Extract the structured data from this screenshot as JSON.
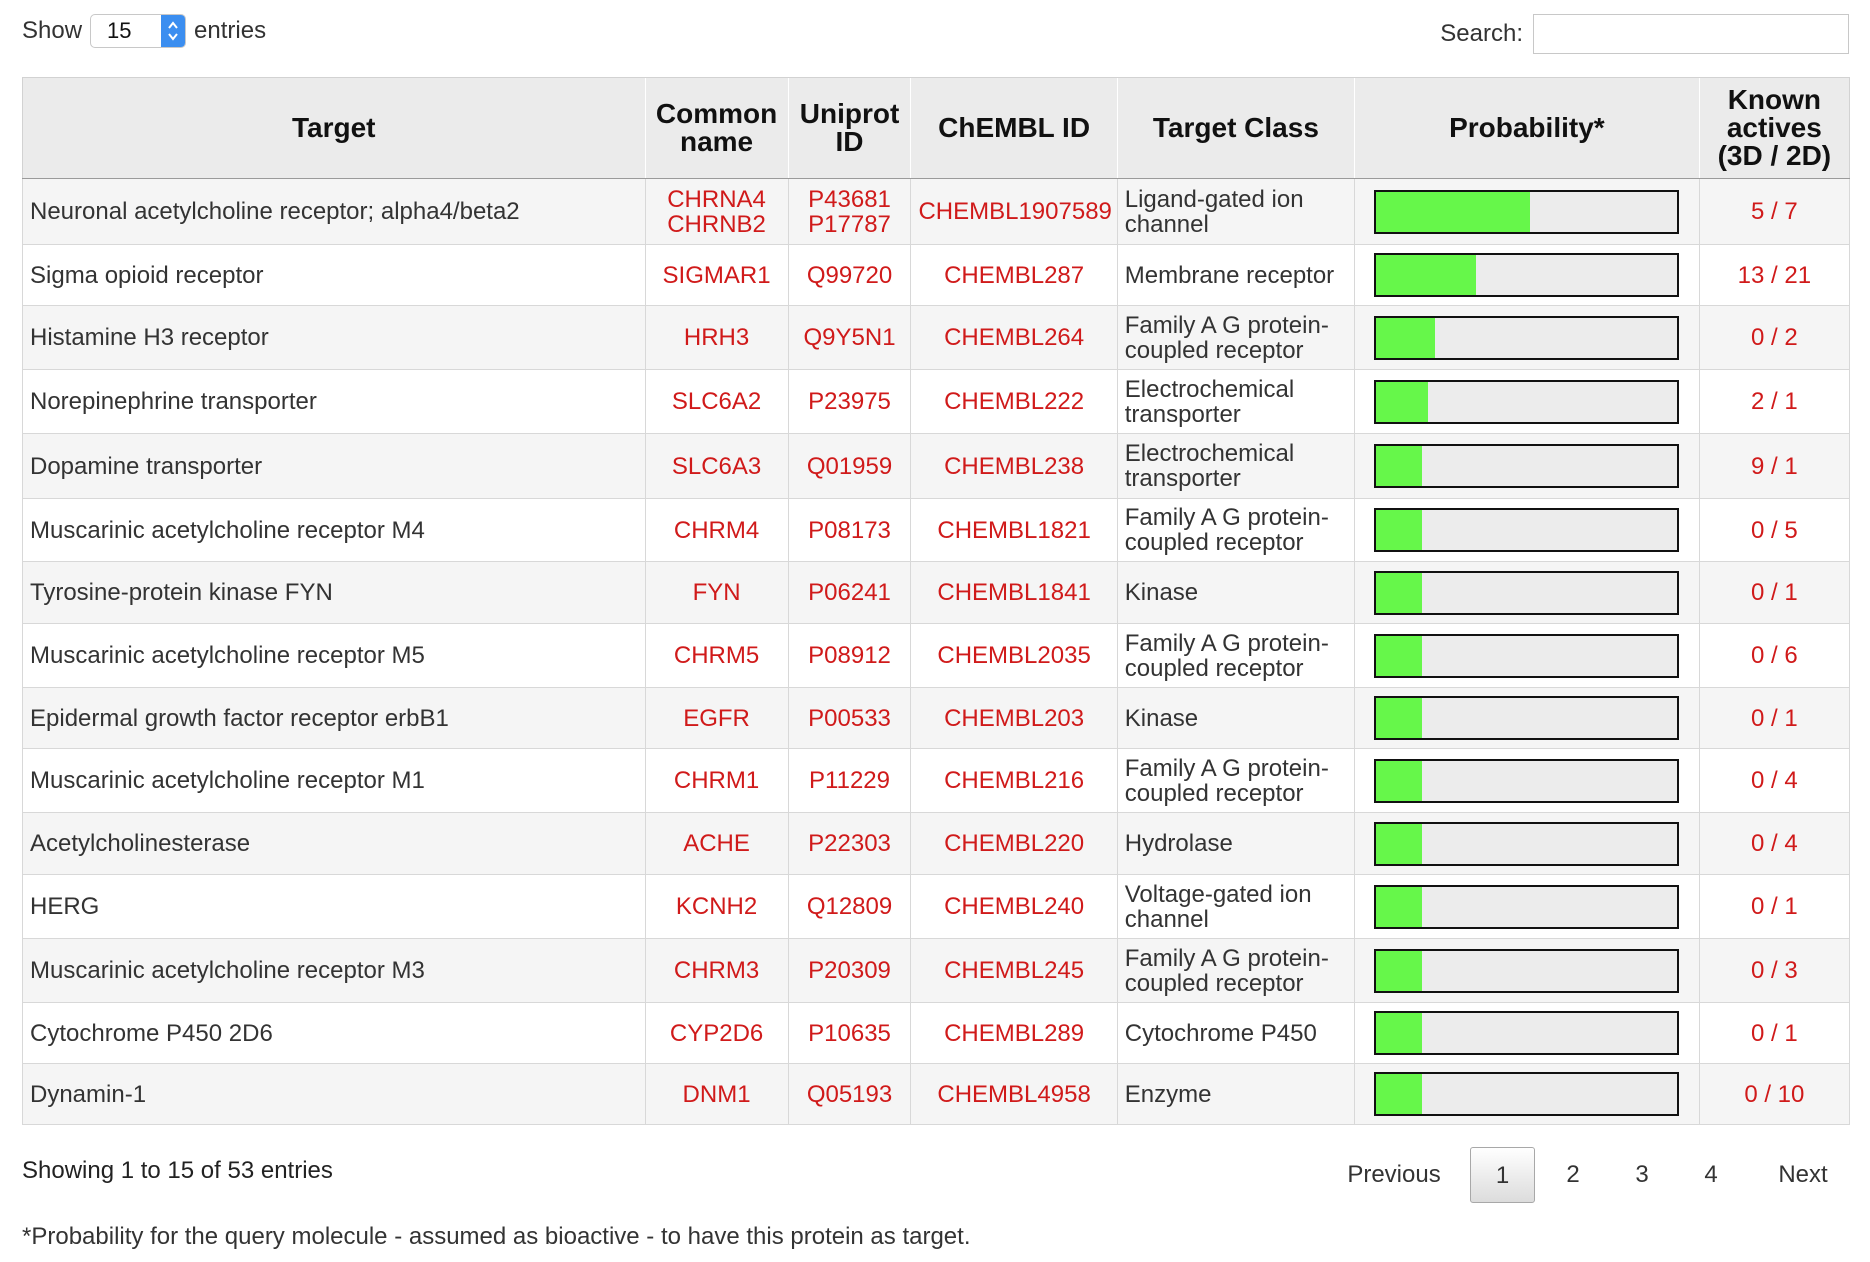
{
  "length_control": {
    "show_label": "Show",
    "page_size": "15",
    "entries_label": "entries"
  },
  "search": {
    "label": "Search:",
    "value": "",
    "placeholder": ""
  },
  "columns": {
    "target": "Target",
    "common_name": "Common name",
    "uniprot_id": "Uniprot ID",
    "chembl_id": "ChEMBL ID",
    "target_class": "Target Class",
    "probability": "Probability*",
    "known_actives": "Known actives (3D / 2D)"
  },
  "rows": [
    {
      "target": "Neuronal acetylcholine receptor; alpha4/beta2",
      "common_name": "CHRNA4 CHRNB2",
      "uniprot_id": "P43681 P17787",
      "chembl_id": "CHEMBL1907589",
      "target_class": "Ligand-gated ion channel",
      "probability": 0.51,
      "known_actives": "5 / 7"
    },
    {
      "target": "Sigma opioid receptor",
      "common_name": "SIGMAR1",
      "uniprot_id": "Q99720",
      "chembl_id": "CHEMBL287",
      "target_class": "Membrane receptor",
      "probability": 0.33,
      "known_actives": "13 / 21"
    },
    {
      "target": "Histamine H3 receptor",
      "common_name": "HRH3",
      "uniprot_id": "Q9Y5N1",
      "chembl_id": "CHEMBL264",
      "target_class": "Family A G protein-coupled receptor",
      "probability": 0.195,
      "known_actives": "0 / 2"
    },
    {
      "target": "Norepinephrine transporter",
      "common_name": "SLC6A2",
      "uniprot_id": "P23975",
      "chembl_id": "CHEMBL222",
      "target_class": "Electrochemical transporter",
      "probability": 0.17,
      "known_actives": "2 / 1"
    },
    {
      "target": "Dopamine transporter",
      "common_name": "SLC6A3",
      "uniprot_id": "Q01959",
      "chembl_id": "CHEMBL238",
      "target_class": "Electrochemical transporter",
      "probability": 0.15,
      "known_actives": "9 / 1"
    },
    {
      "target": "Muscarinic acetylcholine receptor M4",
      "common_name": "CHRM4",
      "uniprot_id": "P08173",
      "chembl_id": "CHEMBL1821",
      "target_class": "Family A G protein-coupled receptor",
      "probability": 0.15,
      "known_actives": "0 / 5"
    },
    {
      "target": "Tyrosine-protein kinase FYN",
      "common_name": "FYN",
      "uniprot_id": "P06241",
      "chembl_id": "CHEMBL1841",
      "target_class": "Kinase",
      "probability": 0.15,
      "known_actives": "0 / 1"
    },
    {
      "target": "Muscarinic acetylcholine receptor M5",
      "common_name": "CHRM5",
      "uniprot_id": "P08912",
      "chembl_id": "CHEMBL2035",
      "target_class": "Family A G protein-coupled receptor",
      "probability": 0.15,
      "known_actives": "0 / 6"
    },
    {
      "target": "Epidermal growth factor receptor erbB1",
      "common_name": "EGFR",
      "uniprot_id": "P00533",
      "chembl_id": "CHEMBL203",
      "target_class": "Kinase",
      "probability": 0.15,
      "known_actives": "0 / 1"
    },
    {
      "target": "Muscarinic acetylcholine receptor M1",
      "common_name": "CHRM1",
      "uniprot_id": "P11229",
      "chembl_id": "CHEMBL216",
      "target_class": "Family A G protein-coupled receptor",
      "probability": 0.15,
      "known_actives": "0 / 4"
    },
    {
      "target": "Acetylcholinesterase",
      "common_name": "ACHE",
      "uniprot_id": "P22303",
      "chembl_id": "CHEMBL220",
      "target_class": "Hydrolase",
      "probability": 0.15,
      "known_actives": "0 / 4"
    },
    {
      "target": "HERG",
      "common_name": "KCNH2",
      "uniprot_id": "Q12809",
      "chembl_id": "CHEMBL240",
      "target_class": "Voltage-gated ion channel",
      "probability": 0.15,
      "known_actives": "0 / 1"
    },
    {
      "target": "Muscarinic acetylcholine receptor M3",
      "common_name": "CHRM3",
      "uniprot_id": "P20309",
      "chembl_id": "CHEMBL245",
      "target_class": "Family A G protein-coupled receptor",
      "probability": 0.15,
      "known_actives": "0 / 3"
    },
    {
      "target": "Cytochrome P450 2D6",
      "common_name": "CYP2D6",
      "uniprot_id": "P10635",
      "chembl_id": "CHEMBL289",
      "target_class": "Cytochrome P450",
      "probability": 0.15,
      "known_actives": "0 / 1"
    },
    {
      "target": "Dynamin-1",
      "common_name": "DNM1",
      "uniprot_id": "Q05193",
      "chembl_id": "CHEMBL4958",
      "target_class": "Enzyme",
      "probability": 0.15,
      "known_actives": "0 / 10"
    }
  ],
  "info": "Showing 1 to 15 of 53 entries",
  "pagination": {
    "previous": "Previous",
    "pages": [
      "1",
      "2",
      "3",
      "4"
    ],
    "current": "1",
    "next": "Next"
  },
  "footnote": "*Probability for the query molecule - assumed as bioactive - to have this protein as target.",
  "colors": {
    "link_red": "#d01a1a",
    "bar_green": "#66f74a",
    "header_bg": "#ebebeb",
    "select_blue": "#3b8ef0"
  }
}
